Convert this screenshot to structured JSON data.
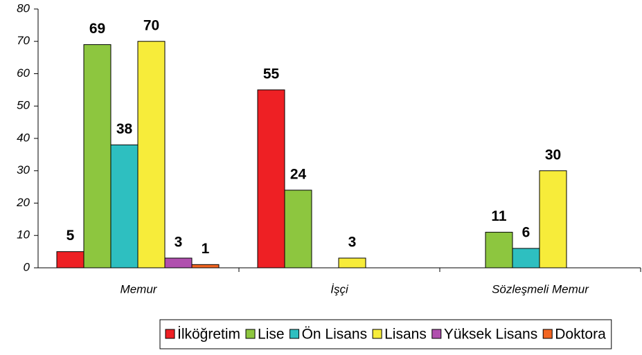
{
  "chart_data": {
    "type": "bar",
    "categories": [
      "Memur",
      "İşçi",
      "Sözleşmeli Memur"
    ],
    "series": [
      {
        "name": "İlköğretim",
        "color": "#ee2024",
        "values": [
          5,
          55,
          null
        ]
      },
      {
        "name": "Lise",
        "color": "#8dc63f",
        "values": [
          69,
          24,
          11
        ]
      },
      {
        "name": "Ön Lisans",
        "color": "#2ebfc0",
        "values": [
          38,
          null,
          6
        ]
      },
      {
        "name": "Lisans",
        "color": "#f7ec3a",
        "values": [
          70,
          3,
          30
        ]
      },
      {
        "name": "Yüksek Lisans",
        "color": "#b04fae",
        "values": [
          3,
          null,
          null
        ]
      },
      {
        "name": "Doktora",
        "color": "#f26522",
        "values": [
          1,
          null,
          null
        ]
      }
    ],
    "ylim": [
      0,
      80
    ],
    "yticks": [
      0,
      10,
      20,
      30,
      40,
      50,
      60,
      70,
      80
    ],
    "legend": "bottom"
  }
}
